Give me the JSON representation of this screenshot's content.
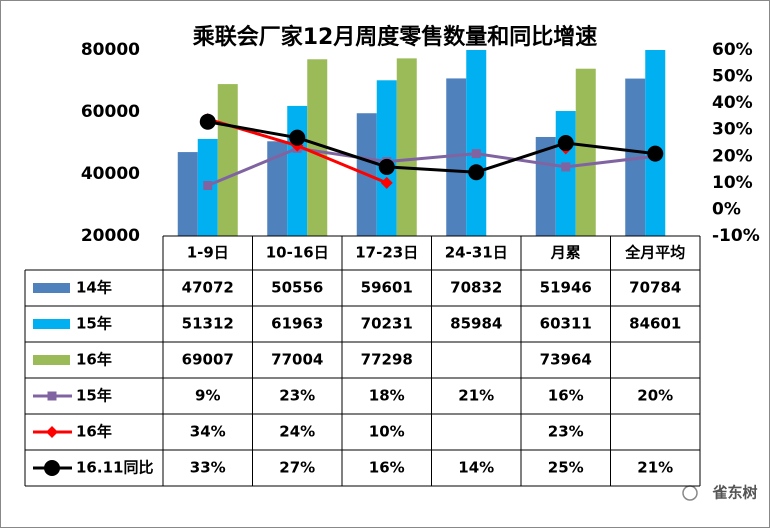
{
  "chart_data": {
    "type": "bar-line-table",
    "title": "乘联会厂家12月周度零售数量和同比增速",
    "categories": [
      "1-9日",
      "10-16日",
      "17-23日",
      "24-31日",
      "月累",
      "全月平均"
    ],
    "series": [
      {
        "name": "14年",
        "type": "bar",
        "color": "#4f81bd",
        "values": [
          47072,
          50556,
          59601,
          70832,
          51946,
          70784
        ]
      },
      {
        "name": "15年",
        "type": "bar",
        "color": "#00b0f0",
        "values": [
          51312,
          61963,
          70231,
          85984,
          60311,
          84601
        ]
      },
      {
        "name": "16年",
        "type": "bar",
        "color": "#9bbb59",
        "values": [
          69007,
          77004,
          77298,
          null,
          73964,
          null
        ]
      },
      {
        "name": "15年",
        "type": "line",
        "axis": "y2",
        "marker": "square",
        "color": "#8064a2",
        "values": [
          9,
          23,
          18,
          21,
          16,
          20
        ],
        "value_labels": [
          "9%",
          "23%",
          "18%",
          "21%",
          "16%",
          "20%"
        ]
      },
      {
        "name": "16年",
        "type": "line",
        "axis": "y2",
        "marker": "diamond",
        "color": "#ff0000",
        "values": [
          34,
          24,
          10,
          null,
          23,
          null
        ],
        "value_labels": [
          "34%",
          "24%",
          "10%",
          null,
          "23%",
          null
        ]
      },
      {
        "name": "16.11同比",
        "type": "line",
        "axis": "y2",
        "marker": "circle",
        "color": "#000000",
        "values": [
          33,
          27,
          16,
          14,
          25,
          21
        ],
        "value_labels": [
          "33%",
          "27%",
          "16%",
          "14%",
          "25%",
          "21%"
        ]
      }
    ],
    "ylim": [
      20000,
      80000
    ],
    "yticks": [
      20000,
      40000,
      60000,
      80000
    ],
    "y2lim": [
      -10,
      60
    ],
    "y2ticks": [
      {
        "value": -10,
        "label": "-10%"
      },
      {
        "value": 0,
        "label": "0%"
      },
      {
        "value": 10,
        "label": "10%"
      },
      {
        "value": 20,
        "label": "20%"
      },
      {
        "value": 30,
        "label": "30%"
      },
      {
        "value": 40,
        "label": "40%"
      },
      {
        "value": 50,
        "label": "50%"
      },
      {
        "value": 60,
        "label": "60%"
      }
    ],
    "watermark": "雀东树"
  }
}
